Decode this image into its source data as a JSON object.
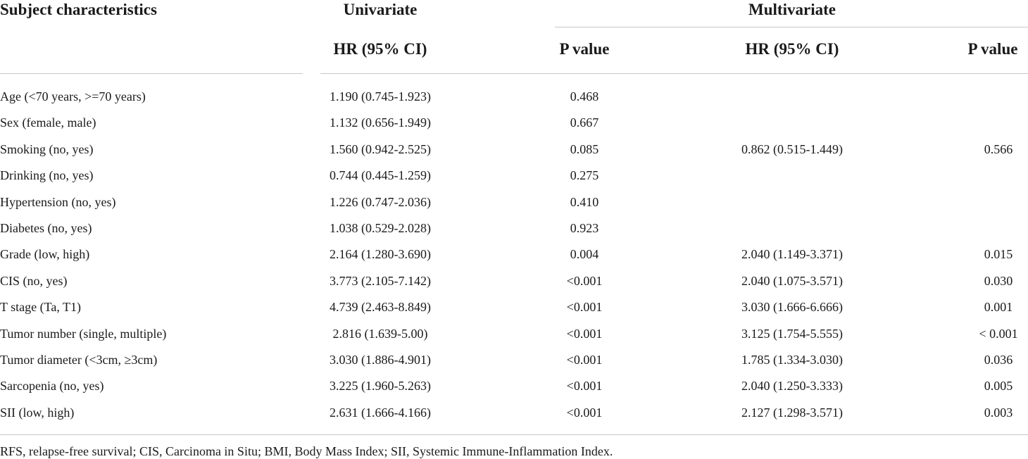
{
  "table": {
    "header": {
      "subject": "Subject characteristics",
      "univariate": "Univariate",
      "multivariate": "Multivariate",
      "uni_hr": "HR (95% CI)",
      "uni_p": "P value",
      "multi_hr": "HR (95% CI)",
      "multi_p": "P value"
    },
    "rows": [
      {
        "label": "Age (<70 years, >=70 years)",
        "uni_hr": "1.190 (0.745-1.923)",
        "uni_p": "0.468",
        "multi_hr": "",
        "multi_p": ""
      },
      {
        "label": "Sex (female, male)",
        "uni_hr": "1.132 (0.656-1.949)",
        "uni_p": "0.667",
        "multi_hr": "",
        "multi_p": ""
      },
      {
        "label": "Smoking (no, yes)",
        "uni_hr": "1.560 (0.942-2.525)",
        "uni_p": "0.085",
        "multi_hr": "0.862 (0.515-1.449)",
        "multi_p": "0.566"
      },
      {
        "label": "Drinking (no, yes)",
        "uni_hr": "0.744 (0.445-1.259)",
        "uni_p": "0.275",
        "multi_hr": "",
        "multi_p": ""
      },
      {
        "label": "Hypertension (no, yes)",
        "uni_hr": "1.226 (0.747-2.036)",
        "uni_p": "0.410",
        "multi_hr": "",
        "multi_p": ""
      },
      {
        "label": "Diabetes (no, yes)",
        "uni_hr": "1.038 (0.529-2.028)",
        "uni_p": "0.923",
        "multi_hr": "",
        "multi_p": ""
      },
      {
        "label": "Grade (low, high)",
        "uni_hr": "2.164 (1.280-3.690)",
        "uni_p": "0.004",
        "multi_hr": "2.040 (1.149-3.371)",
        "multi_p": "0.015"
      },
      {
        "label": "CIS (no, yes)",
        "uni_hr": "3.773 (2.105-7.142)",
        "uni_p": "<0.001",
        "multi_hr": "2.040 (1.075-3.571)",
        "multi_p": "0.030"
      },
      {
        "label": "T stage (Ta, T1)",
        "uni_hr": "4.739 (2.463-8.849)",
        "uni_p": "<0.001",
        "multi_hr": "3.030 (1.666-6.666)",
        "multi_p": "0.001"
      },
      {
        "label": "Tumor number (single, multiple)",
        "uni_hr": "2.816 (1.639-5.00)",
        "uni_p": "<0.001",
        "multi_hr": "3.125 (1.754-5.555)",
        "multi_p": "< 0.001"
      },
      {
        "label": "Tumor diameter (<3cm, ≥3cm)",
        "uni_hr": "3.030 (1.886-4.901)",
        "uni_p": "<0.001",
        "multi_hr": "1.785 (1.334-3.030)",
        "multi_p": "0.036"
      },
      {
        "label": "Sarcopenia (no, yes)",
        "uni_hr": "3.225 (1.960-5.263)",
        "uni_p": "<0.001",
        "multi_hr": "2.040 (1.250-3.333)",
        "multi_p": "0.005"
      },
      {
        "label": "SII (low, high)",
        "uni_hr": "2.631 (1.666-4.166)",
        "uni_p": "<0.001",
        "multi_hr": "2.127 (1.298-3.571)",
        "multi_p": "0.003"
      }
    ],
    "footnote": "RFS, relapse-free survival; CIS, Carcinoma in Situ; BMI, Body Mass Index; SII, Systemic Immune-Inflammation Index."
  }
}
